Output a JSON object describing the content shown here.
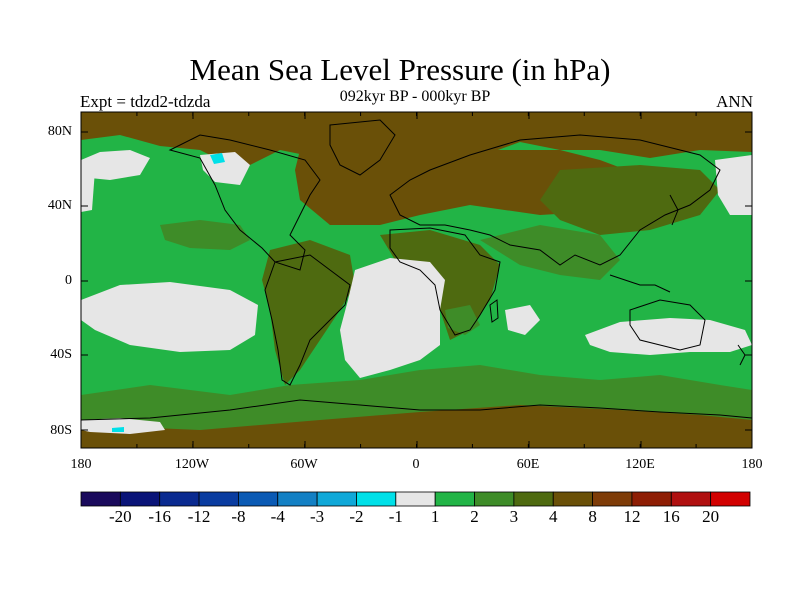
{
  "chart": {
    "title": "Mean Sea Level Pressure (in hPa)",
    "subtitle": "092kyr BP - 000kyr BP",
    "left_string": "Expt = tdzd2-tdzda",
    "right_string": "ANN"
  },
  "axes": {
    "y_ticks": [
      "80N",
      "40N",
      "0",
      "40S",
      "80S"
    ],
    "x_ticks": [
      "180",
      "120W",
      "60W",
      "0",
      "60E",
      "120E",
      "180"
    ]
  },
  "colorbar": {
    "labels": [
      "-20",
      "-16",
      "-12",
      "-8",
      "-4",
      "-3",
      "-2",
      "-1",
      "1",
      "2",
      "3",
      "4",
      "8",
      "12",
      "16",
      "20"
    ],
    "colors": [
      "#1a0a5c",
      "#0a1478",
      "#0a2a90",
      "#0a3ca0",
      "#0b5ab4",
      "#1380c4",
      "#10a8d8",
      "#00e0e8",
      "#e6e6e6",
      "#22b446",
      "#3e8c28",
      "#4e6a10",
      "#6a5008",
      "#7e3c08",
      "#8e1e04",
      "#b01010",
      "#d20000"
    ]
  },
  "map_colors": {
    "neutral": "#e6e6e6",
    "green": "#22b446",
    "olive": "#3e8c28",
    "dark_olive": "#4e6a10",
    "brown": "#6a5008",
    "rust": "#7e3c08",
    "cyan": "#00e0e8",
    "coast": "#000000"
  }
}
